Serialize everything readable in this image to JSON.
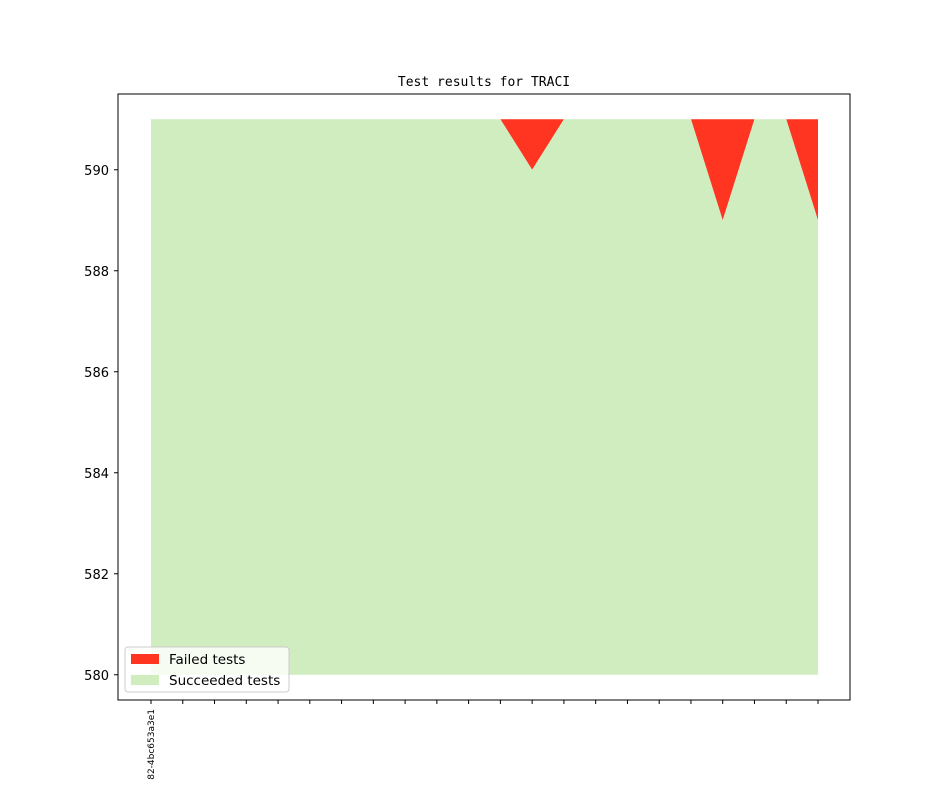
{
  "chart_data": {
    "type": "area",
    "title": "Test results for TRACI",
    "xlabel": "",
    "ylabel": "",
    "x_count": 22,
    "x_tick_labels": [
      "82-4bc653a3e1",
      "",
      "",
      "",
      "",
      "",
      "",
      "",
      "",
      "",
      "",
      "",
      "",
      "",
      "",
      "",
      "",
      "",
      "",
      "",
      "",
      ""
    ],
    "ylim": [
      579.5,
      591.5
    ],
    "yticks": [
      580,
      582,
      584,
      586,
      588,
      590
    ],
    "grid": false,
    "legend_position": "lower-left",
    "baseline": 580,
    "series": [
      {
        "name": "Failed tests",
        "color": "#ff3421",
        "values": [
          0,
          0,
          0,
          0,
          0,
          0,
          0,
          0,
          0,
          0,
          0,
          0,
          1,
          0,
          0,
          0,
          0,
          0,
          2,
          0,
          0,
          2
        ]
      },
      {
        "name": "Succeeded tests",
        "color": "#cfedbe",
        "values": [
          591,
          591,
          591,
          591,
          591,
          591,
          591,
          591,
          591,
          591,
          591,
          591,
          590,
          591,
          591,
          591,
          591,
          591,
          589,
          591,
          591,
          589
        ]
      }
    ],
    "total": 591
  }
}
